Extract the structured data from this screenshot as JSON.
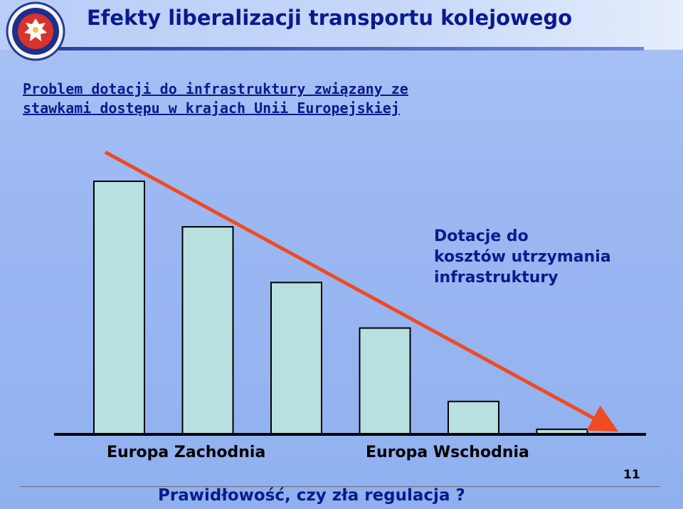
{
  "slide": {
    "title": "Efekty liberalizacji transportu kolejowego",
    "subtitle_line1": "Problem dotacji do infrastruktury związany ze",
    "subtitle_line2": "stawkami dostępu w krajach Unii Europejskiej",
    "annotation_line1": "Dotacje do",
    "annotation_line2": "kosztów utrzymania",
    "annotation_line3": "infrastruktury",
    "footer": "Prawidłowość, czy zła regulacja ?",
    "page_number": "11"
  },
  "colors": {
    "bar_fill": "#b9e0e1",
    "bar_stroke": "#000000",
    "trend_line": "#f04a22",
    "text_primary": "#0a1a8c"
  },
  "chart_data": {
    "type": "bar",
    "categories": [
      "",
      "",
      "",
      "",
      "",
      ""
    ],
    "values": [
      100,
      82,
      60,
      42,
      13,
      2
    ],
    "x_labels": [
      "Europa Zachodnia",
      "Europa Wschodnia"
    ],
    "trend": "decreasing",
    "legend": "none",
    "grid": false
  }
}
